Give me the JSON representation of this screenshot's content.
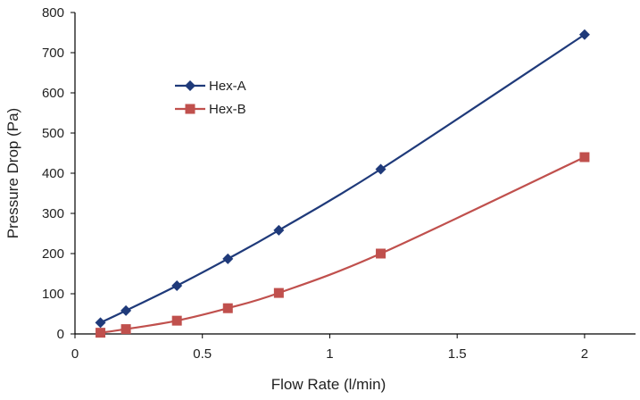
{
  "chart_data": {
    "type": "line",
    "title": "",
    "xlabel": "Flow Rate (l/min)",
    "ylabel": "Pressure Drop (Pa)",
    "xlim": [
      0,
      2.2
    ],
    "ylim": [
      0,
      800
    ],
    "xticks": [
      0,
      0.5,
      1,
      1.5,
      2
    ],
    "xtick_labels": [
      "0",
      "0.5",
      "1",
      "1.5",
      "2"
    ],
    "yticks": [
      0,
      100,
      200,
      300,
      400,
      500,
      600,
      700,
      800
    ],
    "ytick_labels": [
      "0",
      "100",
      "200",
      "300",
      "400",
      "500",
      "600",
      "700",
      "800"
    ],
    "grid": false,
    "legend_position": "top-left",
    "series": [
      {
        "name": "Hex-A",
        "color": "#1f3a7a",
        "marker": "diamond",
        "x": [
          0.1,
          0.2,
          0.4,
          0.6,
          0.8,
          1.2,
          2.0
        ],
        "y": [
          28,
          58,
          120,
          187,
          258,
          410,
          745
        ]
      },
      {
        "name": "Hex-B",
        "color": "#c0504d",
        "marker": "square",
        "x": [
          0.1,
          0.2,
          0.4,
          0.6,
          0.8,
          1.2,
          2.0
        ],
        "y": [
          3,
          12,
          33,
          64,
          102,
          200,
          440
        ]
      }
    ]
  }
}
